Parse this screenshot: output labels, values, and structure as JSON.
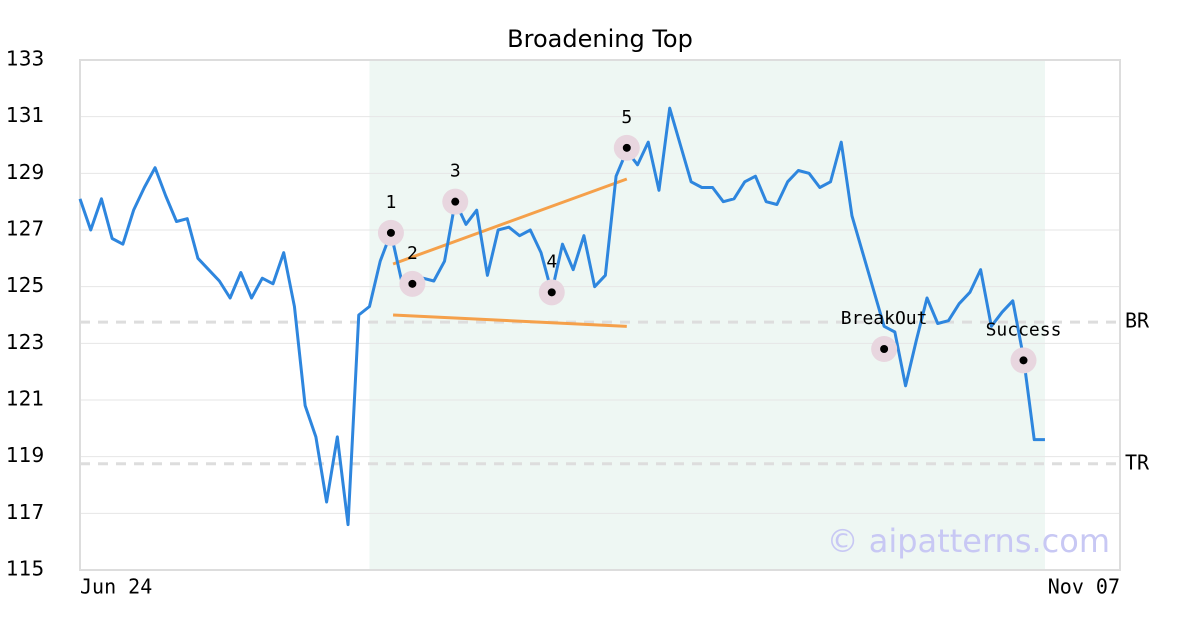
{
  "chart_data": {
    "type": "line",
    "title": "Broadening Top",
    "categories": [
      "Jun 24",
      null,
      null,
      null,
      null,
      null,
      null,
      null,
      null,
      null,
      null,
      null,
      null,
      null,
      null,
      null,
      null,
      null,
      null,
      null,
      null,
      null,
      null,
      null,
      null,
      null,
      null,
      null,
      null,
      null,
      null,
      null,
      null,
      null,
      null,
      null,
      null,
      null,
      null,
      null,
      null,
      null,
      null,
      null,
      null,
      null,
      null,
      null,
      null,
      null,
      null,
      null,
      null,
      null,
      null,
      null,
      null,
      null,
      null,
      null,
      null,
      null,
      null,
      null,
      null,
      null,
      null,
      null,
      null,
      null,
      null,
      null,
      null,
      null,
      null,
      null,
      null,
      null,
      null,
      null,
      null,
      null,
      null,
      null,
      null,
      null,
      null,
      null,
      null,
      null,
      null,
      null,
      null,
      null,
      null,
      null,
      null,
      "Nov 07"
    ],
    "series": [
      {
        "color": "#2e86de",
        "values": [
          128.1,
          127.0,
          128.1,
          126.7,
          126.5,
          127.7,
          128.5,
          129.2,
          128.2,
          127.3,
          127.4,
          126.0,
          125.6,
          125.2,
          124.6,
          125.5,
          124.6,
          125.3,
          125.1,
          126.2,
          124.3,
          120.8,
          119.7,
          117.4,
          119.7,
          116.6,
          124.0,
          124.3,
          125.9,
          126.9,
          125.2,
          125.1,
          125.3,
          125.2,
          125.9,
          128.0,
          127.2,
          127.7,
          125.4,
          127.0,
          127.1,
          126.8,
          127.0,
          126.2,
          124.8,
          126.5,
          125.6,
          126.8,
          125.0,
          125.4,
          128.9,
          129.8,
          129.3,
          130.1,
          128.4,
          131.3,
          130.0,
          128.7,
          128.5,
          128.5,
          128.0,
          128.1,
          128.7,
          128.9,
          128.0,
          127.9,
          128.7,
          129.1,
          129.0,
          128.5,
          128.7,
          130.1,
          127.5,
          126.2,
          124.9,
          123.6,
          123.4,
          121.5,
          123.1,
          124.6,
          123.7,
          123.8,
          124.4,
          124.8,
          125.6,
          123.6,
          124.1,
          124.5,
          122.5,
          119.6,
          119.6,
          null,
          null,
          null,
          null,
          null,
          null,
          null
        ]
      }
    ],
    "ylim": [
      115,
      133
    ],
    "yticks": [
      115,
      117,
      119,
      121,
      123,
      125,
      127,
      129,
      131,
      133
    ],
    "grid": true,
    "shade": {
      "from": 27,
      "to": 90,
      "color": "#eef7f3"
    },
    "markers": [
      {
        "label": "1",
        "index": 29,
        "value": 126.9
      },
      {
        "label": "2",
        "index": 31,
        "value": 125.1
      },
      {
        "label": "3",
        "index": 35,
        "value": 128.0
      },
      {
        "label": "4",
        "index": 44,
        "value": 124.8
      },
      {
        "label": "5",
        "index": 51,
        "value": 129.9
      },
      {
        "label": "BreakOut",
        "index": 75,
        "value": 122.8
      },
      {
        "label": "Success",
        "index": 88,
        "value": 122.4
      }
    ],
    "trendlines": [
      {
        "color": "#f5a04a",
        "x": [
          29.2,
          51
        ],
        "values": [
          125.8,
          128.8
        ]
      },
      {
        "color": "#f5a04a",
        "x": [
          29.2,
          51
        ],
        "values": [
          124.0,
          123.6
        ]
      }
    ],
    "levels": [
      {
        "label": "BR",
        "value": 123.75
      },
      {
        "label": "TR",
        "value": 118.75
      }
    ],
    "watermark": "© aipatterns.com"
  }
}
